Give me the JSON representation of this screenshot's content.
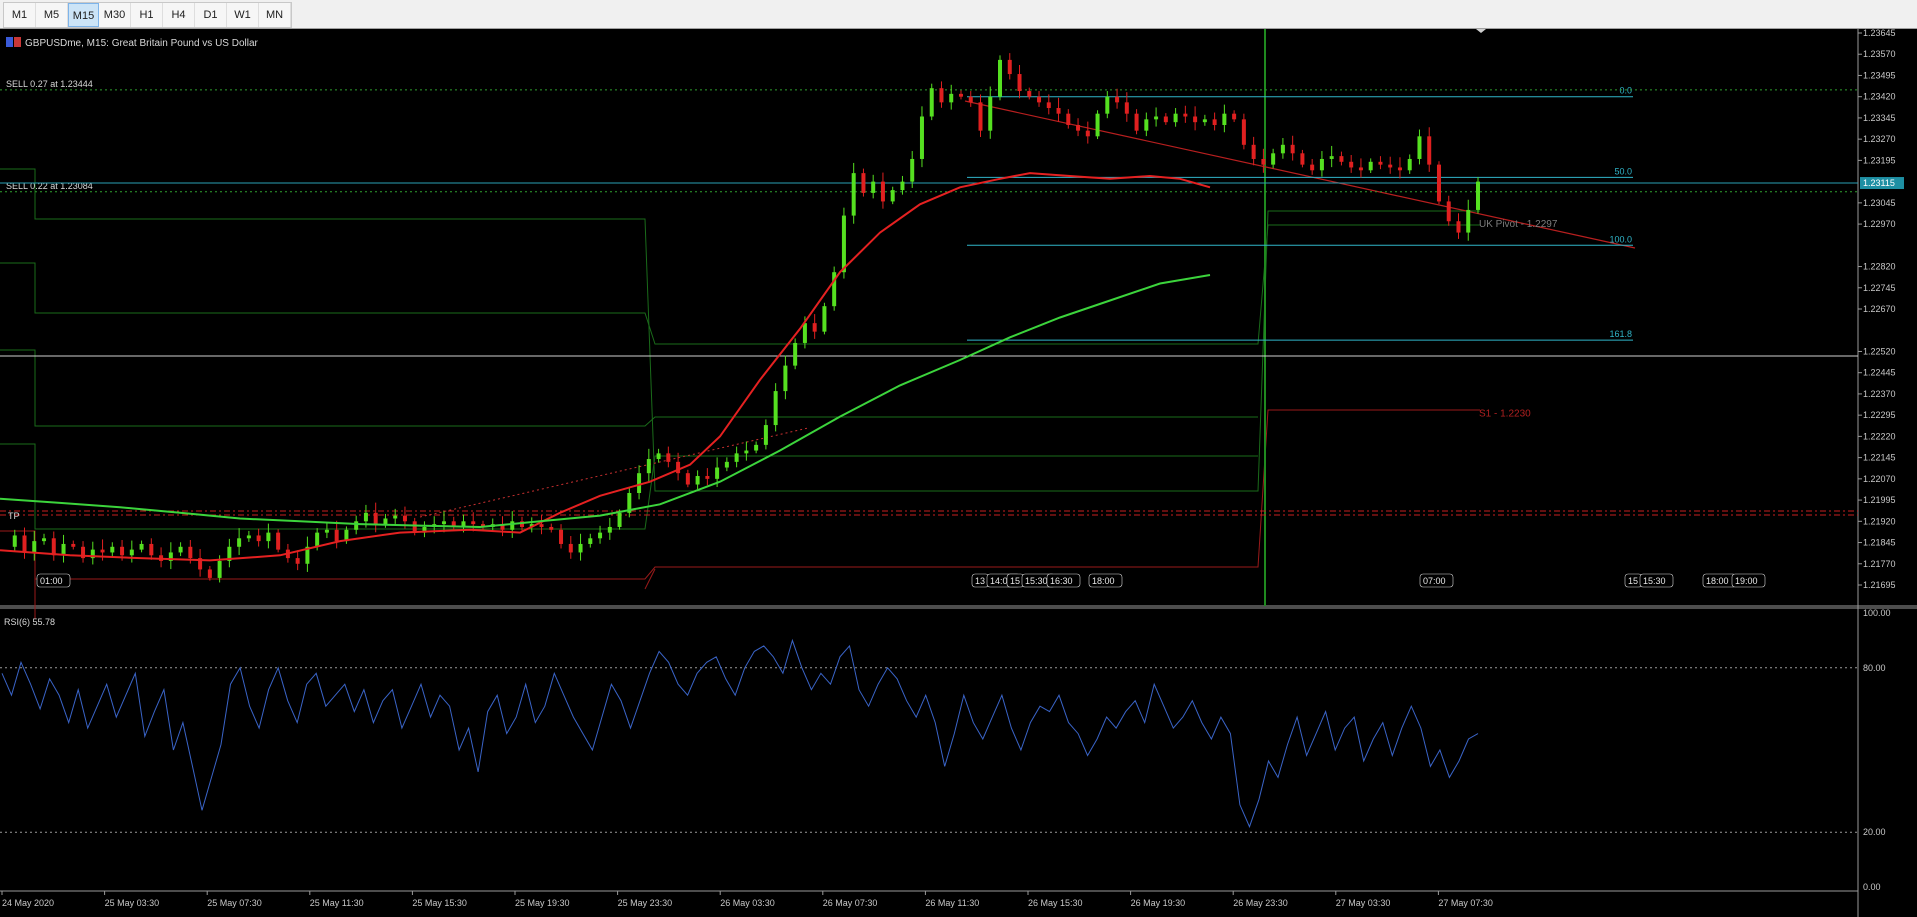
{
  "toolbar": {
    "timeframes": [
      {
        "label": "M1",
        "active": false
      },
      {
        "label": "M5",
        "active": false
      },
      {
        "label": "M15",
        "active": true
      },
      {
        "label": "M30",
        "active": false
      },
      {
        "label": "H1",
        "active": false
      },
      {
        "label": "H4",
        "active": false
      },
      {
        "label": "D1",
        "active": false
      },
      {
        "label": "W1",
        "active": false
      },
      {
        "label": "MN",
        "active": false
      }
    ]
  },
  "chart_header": {
    "symbol_icon": "flag-gbp-usd-icon",
    "title": "GBPUSDme, M15:  Great Britain Pound vs US Dollar"
  },
  "colors": {
    "background": "#000000",
    "bull_candle": "#55e020",
    "bear_candle": "#e02020",
    "ma_fast": "#e52121",
    "ma_slow": "#3cd43c",
    "fibo": "#30b5c9",
    "grid_text": "#c8c8c8",
    "rsi_line": "#3a64c8",
    "current_price_tag": "#1e8fa3"
  },
  "orders": [
    {
      "label": "SELL 0.27 at 1.23444",
      "price": 1.23444
    },
    {
      "label": "SELL 0.22 at 1.23084",
      "price": 1.23084
    }
  ],
  "current_price": {
    "label": "1.23115",
    "price": 1.23115
  },
  "price_axis": {
    "labels": [
      "1.23645",
      "1.23570",
      "1.23495",
      "1.23420",
      "1.23345",
      "1.23270",
      "1.23195",
      "1.23045",
      "1.22970",
      "1.22820",
      "1.22745",
      "1.22670",
      "1.22520",
      "1.22445",
      "1.22370",
      "1.22295",
      "1.22220",
      "1.22145",
      "1.22070",
      "1.21995",
      "1.21920",
      "1.21845",
      "1.21770",
      "1.21695"
    ]
  },
  "fibo_levels": [
    {
      "label": "0.0",
      "price": 1.2342
    },
    {
      "label": "50.0",
      "price": 1.23135
    },
    {
      "label": "100.0",
      "price": 1.22895
    },
    {
      "label": "161.8",
      "price": 1.2256
    }
  ],
  "pivot_labels": [
    {
      "label": "UK Pivot - 1.2297",
      "price": 1.2297
    },
    {
      "label": "S1 - 1.2230",
      "price": 1.223
    }
  ],
  "tp_label": "TP",
  "session_markers": [
    "01:00",
    "13",
    "14:00",
    "15",
    "15:30",
    "16:30",
    "18:00",
    "07:00",
    "15",
    "15:30",
    "18:00",
    "19:00"
  ],
  "rsi": {
    "label": "RSI(6) 55.78",
    "axis_labels": [
      "100.00",
      "80.00",
      "20.00",
      "0.00"
    ]
  },
  "time_axis": {
    "labels": [
      "24 May 2020",
      "25 May 03:30",
      "25 May 07:30",
      "25 May 11:30",
      "25 May 15:30",
      "25 May 19:30",
      "25 May 23:30",
      "26 May 03:30",
      "26 May 07:30",
      "26 May 11:30",
      "26 May 15:30",
      "26 May 19:30",
      "26 May 23:30",
      "27 May 03:30",
      "27 May 07:30"
    ]
  },
  "chart_data": {
    "type": "candlestick",
    "ylim": [
      1.2164,
      1.2367
    ],
    "price_path": [
      1.2183,
      1.2187,
      1.2181,
      1.2185,
      1.2186,
      1.218,
      1.2184,
      1.2183,
      1.2179,
      1.2182,
      1.2181,
      1.2183,
      1.218,
      1.2182,
      1.2184,
      1.218,
      1.2178,
      1.2181,
      1.2183,
      1.2179,
      1.2175,
      1.2172,
      1.2178,
      1.2183,
      1.2186,
      1.2187,
      1.2185,
      1.2188,
      1.2182,
      1.2179,
      1.2177,
      1.2183,
      1.2188,
      1.2189,
      1.2185,
      1.2189,
      1.2192,
      1.2195,
      1.2191,
      1.2193,
      1.2194,
      1.2192,
      1.2188,
      1.219,
      1.2191,
      1.2192,
      1.219,
      1.2192,
      1.2191,
      1.219,
      1.2191,
      1.2189,
      1.2192,
      1.219,
      1.2191,
      1.219,
      1.2189,
      1.2184,
      1.2181,
      1.2184,
      1.2186,
      1.2188,
      1.219,
      1.2195,
      1.2202,
      1.2209,
      1.2214,
      1.2216,
      1.2213,
      1.2209,
      1.2205,
      1.2208,
      1.2207,
      1.2211,
      1.2213,
      1.2216,
      1.2217,
      1.2219,
      1.2226,
      1.2238,
      1.2247,
      1.2255,
      1.2262,
      1.2259,
      1.2268,
      1.228,
      1.23,
      1.2315,
      1.2308,
      1.2312,
      1.2305,
      1.2309,
      1.2312,
      1.232,
      1.2335,
      1.2345,
      1.234,
      1.2343,
      1.2342,
      1.234,
      1.233,
      1.2342,
      1.2355,
      1.235,
      1.2344,
      1.2342,
      1.234,
      1.2338,
      1.2336,
      1.2332,
      1.233,
      1.2328,
      1.2336,
      1.2342,
      1.234,
      1.2336,
      1.233,
      1.2334,
      1.2335,
      1.2333,
      1.2336,
      1.2335,
      1.2333,
      1.2334,
      1.2332,
      1.2336,
      1.2334,
      1.2325,
      1.232,
      1.2318,
      1.2322,
      1.2325,
      1.2322,
      1.2318,
      1.2316,
      1.232,
      1.2321,
      1.2319,
      1.2317,
      1.2316,
      1.2319,
      1.2318,
      1.2317,
      1.2316,
      1.232,
      1.2328,
      1.2318,
      1.2305,
      1.2298,
      1.2294,
      1.2302,
      1.2312
    ],
    "ma_fast": [
      [
        0,
        1.21818
      ],
      [
        70,
        1.218
      ],
      [
        140,
        1.2179
      ],
      [
        210,
        1.21782
      ],
      [
        280,
        1.218
      ],
      [
        340,
        1.2185
      ],
      [
        400,
        1.2188
      ],
      [
        470,
        1.2189
      ],
      [
        520,
        1.2188
      ],
      [
        560,
        1.2195
      ],
      [
        600,
        1.2201
      ],
      [
        650,
        1.2206
      ],
      [
        690,
        1.2212
      ],
      [
        720,
        1.2222
      ],
      [
        760,
        1.2242
      ],
      [
        800,
        1.226
      ],
      [
        840,
        1.228
      ],
      [
        880,
        1.2294
      ],
      [
        920,
        1.2304
      ],
      [
        960,
        1.231
      ],
      [
        1000,
        1.2313
      ],
      [
        1030,
        1.2315
      ],
      [
        1070,
        1.2314
      ],
      [
        1110,
        1.2313
      ],
      [
        1150,
        1.2314
      ],
      [
        1180,
        1.2313
      ],
      [
        1210,
        1.231
      ]
    ],
    "ma_slow": [
      [
        0,
        1.22
      ],
      [
        60,
        1.21985
      ],
      [
        120,
        1.2197
      ],
      [
        180,
        1.2195
      ],
      [
        240,
        1.2193
      ],
      [
        300,
        1.2192
      ],
      [
        360,
        1.2191
      ],
      [
        420,
        1.21905
      ],
      [
        480,
        1.219
      ],
      [
        540,
        1.2192
      ],
      [
        600,
        1.2194
      ],
      [
        660,
        1.2198
      ],
      [
        720,
        1.2206
      ],
      [
        780,
        1.2217
      ],
      [
        840,
        1.2229
      ],
      [
        900,
        1.224
      ],
      [
        960,
        1.2249
      ],
      [
        1010,
        1.2257
      ],
      [
        1060,
        1.2264
      ],
      [
        1110,
        1.227
      ],
      [
        1160,
        1.2276
      ],
      [
        1210,
        1.2279
      ]
    ],
    "rsi_values": [
      78,
      70,
      82,
      74,
      65,
      76,
      70,
      60,
      72,
      58,
      66,
      74,
      62,
      70,
      78,
      55,
      64,
      72,
      50,
      60,
      44,
      28,
      40,
      52,
      74,
      80,
      66,
      58,
      72,
      80,
      68,
      60,
      74,
      78,
      66,
      70,
      74,
      64,
      72,
      60,
      68,
      72,
      58,
      66,
      74,
      62,
      70,
      66,
      50,
      58,
      42,
      64,
      70,
      56,
      62,
      74,
      60,
      66,
      78,
      70,
      62,
      56,
      50,
      62,
      74,
      68,
      58,
      68,
      78,
      86,
      82,
      74,
      70,
      78,
      82,
      84,
      76,
      70,
      80,
      86,
      88,
      84,
      78,
      90,
      80,
      72,
      78,
      74,
      84,
      88,
      72,
      66,
      74,
      80,
      76,
      68,
      62,
      70,
      60,
      44,
      56,
      70,
      60,
      54,
      62,
      70,
      58,
      50,
      60,
      66,
      64,
      70,
      60,
      56,
      48,
      54,
      62,
      58,
      64,
      68,
      60,
      74,
      66,
      58,
      62,
      68,
      60,
      54,
      62,
      56,
      30,
      22,
      32,
      46,
      40,
      52,
      62,
      48,
      56,
      64,
      50,
      58,
      62,
      46,
      54,
      60,
      48,
      58,
      66,
      58,
      44,
      50,
      40,
      46,
      54,
      56
    ]
  }
}
